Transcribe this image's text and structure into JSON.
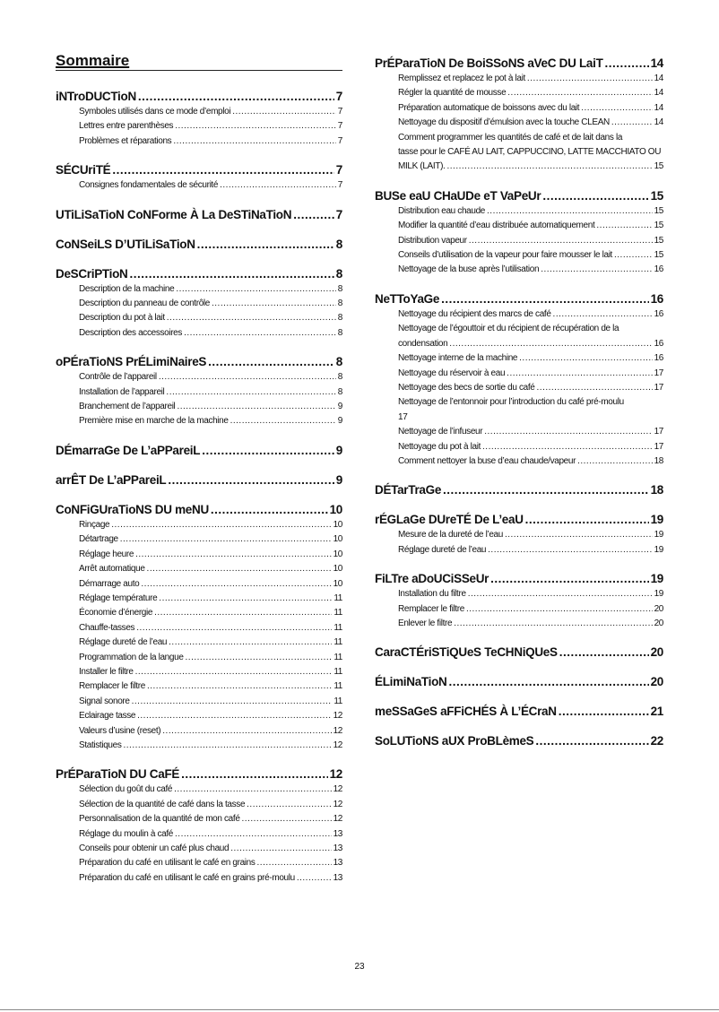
{
  "title": "Sommaire",
  "page_number": "23",
  "columns": [
    [
      {
        "heading": "iNTroDUCTioN",
        "page": "7",
        "items": [
          {
            "lines": [
              "Symboles utilisés dans ce mode d’emploi"
            ],
            "page": "7"
          },
          {
            "lines": [
              "Lettres entre parenthèses"
            ],
            "page": "7"
          },
          {
            "lines": [
              "Problèmes et réparations"
            ],
            "page": "7"
          }
        ]
      },
      {
        "heading": "SÉCUriTÉ",
        "page": "7",
        "items": [
          {
            "lines": [
              "Consignes fondamentales de sécurité"
            ],
            "page": "7"
          }
        ]
      },
      {
        "heading": "UTiLiSaTioN CoNForme À La DeSTiNaTioN",
        "page": "7",
        "items": []
      },
      {
        "heading": "CoNSeiLS D’UTiLiSaTioN",
        "page": "8",
        "items": []
      },
      {
        "heading": "DeSCriPTioN",
        "page": "8",
        "items": [
          {
            "lines": [
              "Description de la machine"
            ],
            "page": "8"
          },
          {
            "lines": [
              "Description du panneau de contrôle"
            ],
            "page": "8"
          },
          {
            "lines": [
              "Description du pot à lait"
            ],
            "page": "8"
          },
          {
            "lines": [
              "Description des accessoires"
            ],
            "page": "8"
          }
        ]
      },
      {
        "heading": "oPÉraTioNS PrÉLimiNaireS",
        "page": "8",
        "items": [
          {
            "lines": [
              "Contrôle de l’appareil"
            ],
            "page": "8"
          },
          {
            "lines": [
              "Installation de l’appareil"
            ],
            "page": "8"
          },
          {
            "lines": [
              "Branchement de l’appareil"
            ],
            "page": "9"
          },
          {
            "lines": [
              "Première mise en marche de la machine"
            ],
            "page": "9"
          }
        ]
      },
      {
        "heading": "DÉmarraGe De L’aPPareiL",
        "page": "9",
        "items": []
      },
      {
        "heading": "arrÊT De L’aPPareiL",
        "page": "9",
        "items": []
      },
      {
        "heading": "CoNFiGUraTioNS DU meNU",
        "page": "10",
        "items": [
          {
            "lines": [
              "Rinçage"
            ],
            "page": "10"
          },
          {
            "lines": [
              "Détartrage"
            ],
            "page": "10"
          },
          {
            "lines": [
              "Réglage heure"
            ],
            "page": "10"
          },
          {
            "lines": [
              "Arrêt automatique"
            ],
            "page": "10"
          },
          {
            "lines": [
              "Démarrage auto"
            ],
            "page": "10"
          },
          {
            "lines": [
              "Réglage température"
            ],
            "page": "11"
          },
          {
            "lines": [
              "Économie d’énergie"
            ],
            "page": "11"
          },
          {
            "lines": [
              "Chauffe-tasses"
            ],
            "page": "11"
          },
          {
            "lines": [
              "Réglage dureté de l’eau"
            ],
            "page": "11"
          },
          {
            "lines": [
              "Programmation de la langue"
            ],
            "page": "11"
          },
          {
            "lines": [
              "Installer le filtre"
            ],
            "page": "11"
          },
          {
            "lines": [
              "Remplacer le filtre"
            ],
            "page": "11"
          },
          {
            "lines": [
              "Signal sonore"
            ],
            "page": "11"
          },
          {
            "lines": [
              "Eclairage tasse"
            ],
            "page": "12"
          },
          {
            "lines": [
              "Valeurs d’usine (reset)"
            ],
            "page": "12"
          },
          {
            "lines": [
              "Statistiques"
            ],
            "page": "12"
          }
        ]
      },
      {
        "heading": "PrÉParaTioN DU CaFÉ",
        "page": "12",
        "items": [
          {
            "lines": [
              "Sélection du goût du café"
            ],
            "page": "12"
          },
          {
            "lines": [
              "Sélection de la quantité de café dans la tasse"
            ],
            "page": "12"
          },
          {
            "lines": [
              "Personnalisation de la quantité de mon café"
            ],
            "page": "12"
          },
          {
            "lines": [
              "Réglage du moulin à café"
            ],
            "page": "13"
          },
          {
            "lines": [
              "Conseils pour obtenir un café plus chaud"
            ],
            "page": "13"
          },
          {
            "lines": [
              "Préparation du café en utilisant le café en grains"
            ],
            "page": "13"
          },
          {
            "lines": [
              "Préparation du café en utilisant le café en grains pré-moulu"
            ],
            "page": "13"
          }
        ]
      }
    ],
    [
      {
        "heading": "PrÉParaTioN De BoiSSoNS aVeC DU LaiT",
        "page": "14",
        "items": [
          {
            "lines": [
              "Remplissez et replacez le pot à lait"
            ],
            "page": "14"
          },
          {
            "lines": [
              "Régler la quantité de mousse"
            ],
            "page": "14"
          },
          {
            "lines": [
              "Préparation automatique de boissons avec du lait"
            ],
            "page": "14"
          },
          {
            "lines": [
              "Nettoyage du dispositif d’émulsion avec la touche CLEAN"
            ],
            "page": "14"
          },
          {
            "lines": [
              "Comment programmer les quantités de café et de lait dans la",
              "tasse pour le CAFÉ AU LAIT, CAPPUCCINO, LATTE MACCHIATO OU",
              "MILK (LAIT)."
            ],
            "page": "15"
          }
        ]
      },
      {
        "heading": "BUSe eaU CHaUDe eT VaPeUr",
        "page": "15",
        "items": [
          {
            "lines": [
              "Distribution eau chaude"
            ],
            "page": "15"
          },
          {
            "lines": [
              "Modifier la quantité d’eau distribuée automatiquement"
            ],
            "page": "15"
          },
          {
            "lines": [
              "Distribution vapeur"
            ],
            "page": "15"
          },
          {
            "lines": [
              "Conseils d’utilisation de la vapeur pour faire mousser le lait"
            ],
            "page": "15"
          },
          {
            "lines": [
              "Nettoyage de la buse après l’utilisation"
            ],
            "page": "16"
          }
        ]
      },
      {
        "heading": "NeTToYaGe",
        "page": "16",
        "items": [
          {
            "lines": [
              "Nettoyage du récipient des marcs de café"
            ],
            "page": "16"
          },
          {
            "lines": [
              "Nettoyage de l’égouttoir et du récipient de récupération de la",
              "condensation"
            ],
            "page": "16"
          },
          {
            "lines": [
              "Nettoyage interne de la machine"
            ],
            "page": "16"
          },
          {
            "lines": [
              "Nettoyage du réservoir à eau"
            ],
            "page": "17"
          },
          {
            "lines": [
              "Nettoyage des becs de sortie du café"
            ],
            "page": "17"
          },
          {
            "lines": [
              "Nettoyage de l’entonnoir pour l’introduction du café pré-moulu"
            ],
            "page": "17",
            "page_on_next_line": true
          },
          {
            "lines": [
              "Nettoyage de l’infuseur"
            ],
            "page": "17"
          },
          {
            "lines": [
              "Nettoyage du pot à lait"
            ],
            "page": "17"
          },
          {
            "lines": [
              "Comment nettoyer la buse d’eau chaude/vapeur"
            ],
            "page": "18"
          }
        ]
      },
      {
        "heading": "DÉTarTraGe",
        "page": "18",
        "items": []
      },
      {
        "heading": "rÉGLaGe DUreTÉ De L’eaU",
        "page": "19",
        "items": [
          {
            "lines": [
              "Mesure de la dureté de l’eau"
            ],
            "page": "19"
          },
          {
            "lines": [
              "Réglage dureté de l’eau"
            ],
            "page": "19"
          }
        ]
      },
      {
        "heading": "FiLTre aDoUCiSSeUr",
        "page": "19",
        "items": [
          {
            "lines": [
              "Installation du filtre"
            ],
            "page": "19"
          },
          {
            "lines": [
              "Remplacer le filtre"
            ],
            "page": "20"
          },
          {
            "lines": [
              "Enlever le filtre"
            ],
            "page": "20"
          }
        ]
      },
      {
        "heading": "CaraCTÉriSTiQUeS TeCHNiQUeS",
        "page": "20",
        "items": []
      },
      {
        "heading": "ÉLimiNaTioN",
        "page": "20",
        "items": []
      },
      {
        "heading": "meSSaGeS aFFiCHÉS À L’ÉCraN",
        "page": "21",
        "items": []
      },
      {
        "heading": "SoLUTioNS aUX ProBLèmeS",
        "page": "22",
        "items": []
      }
    ]
  ]
}
